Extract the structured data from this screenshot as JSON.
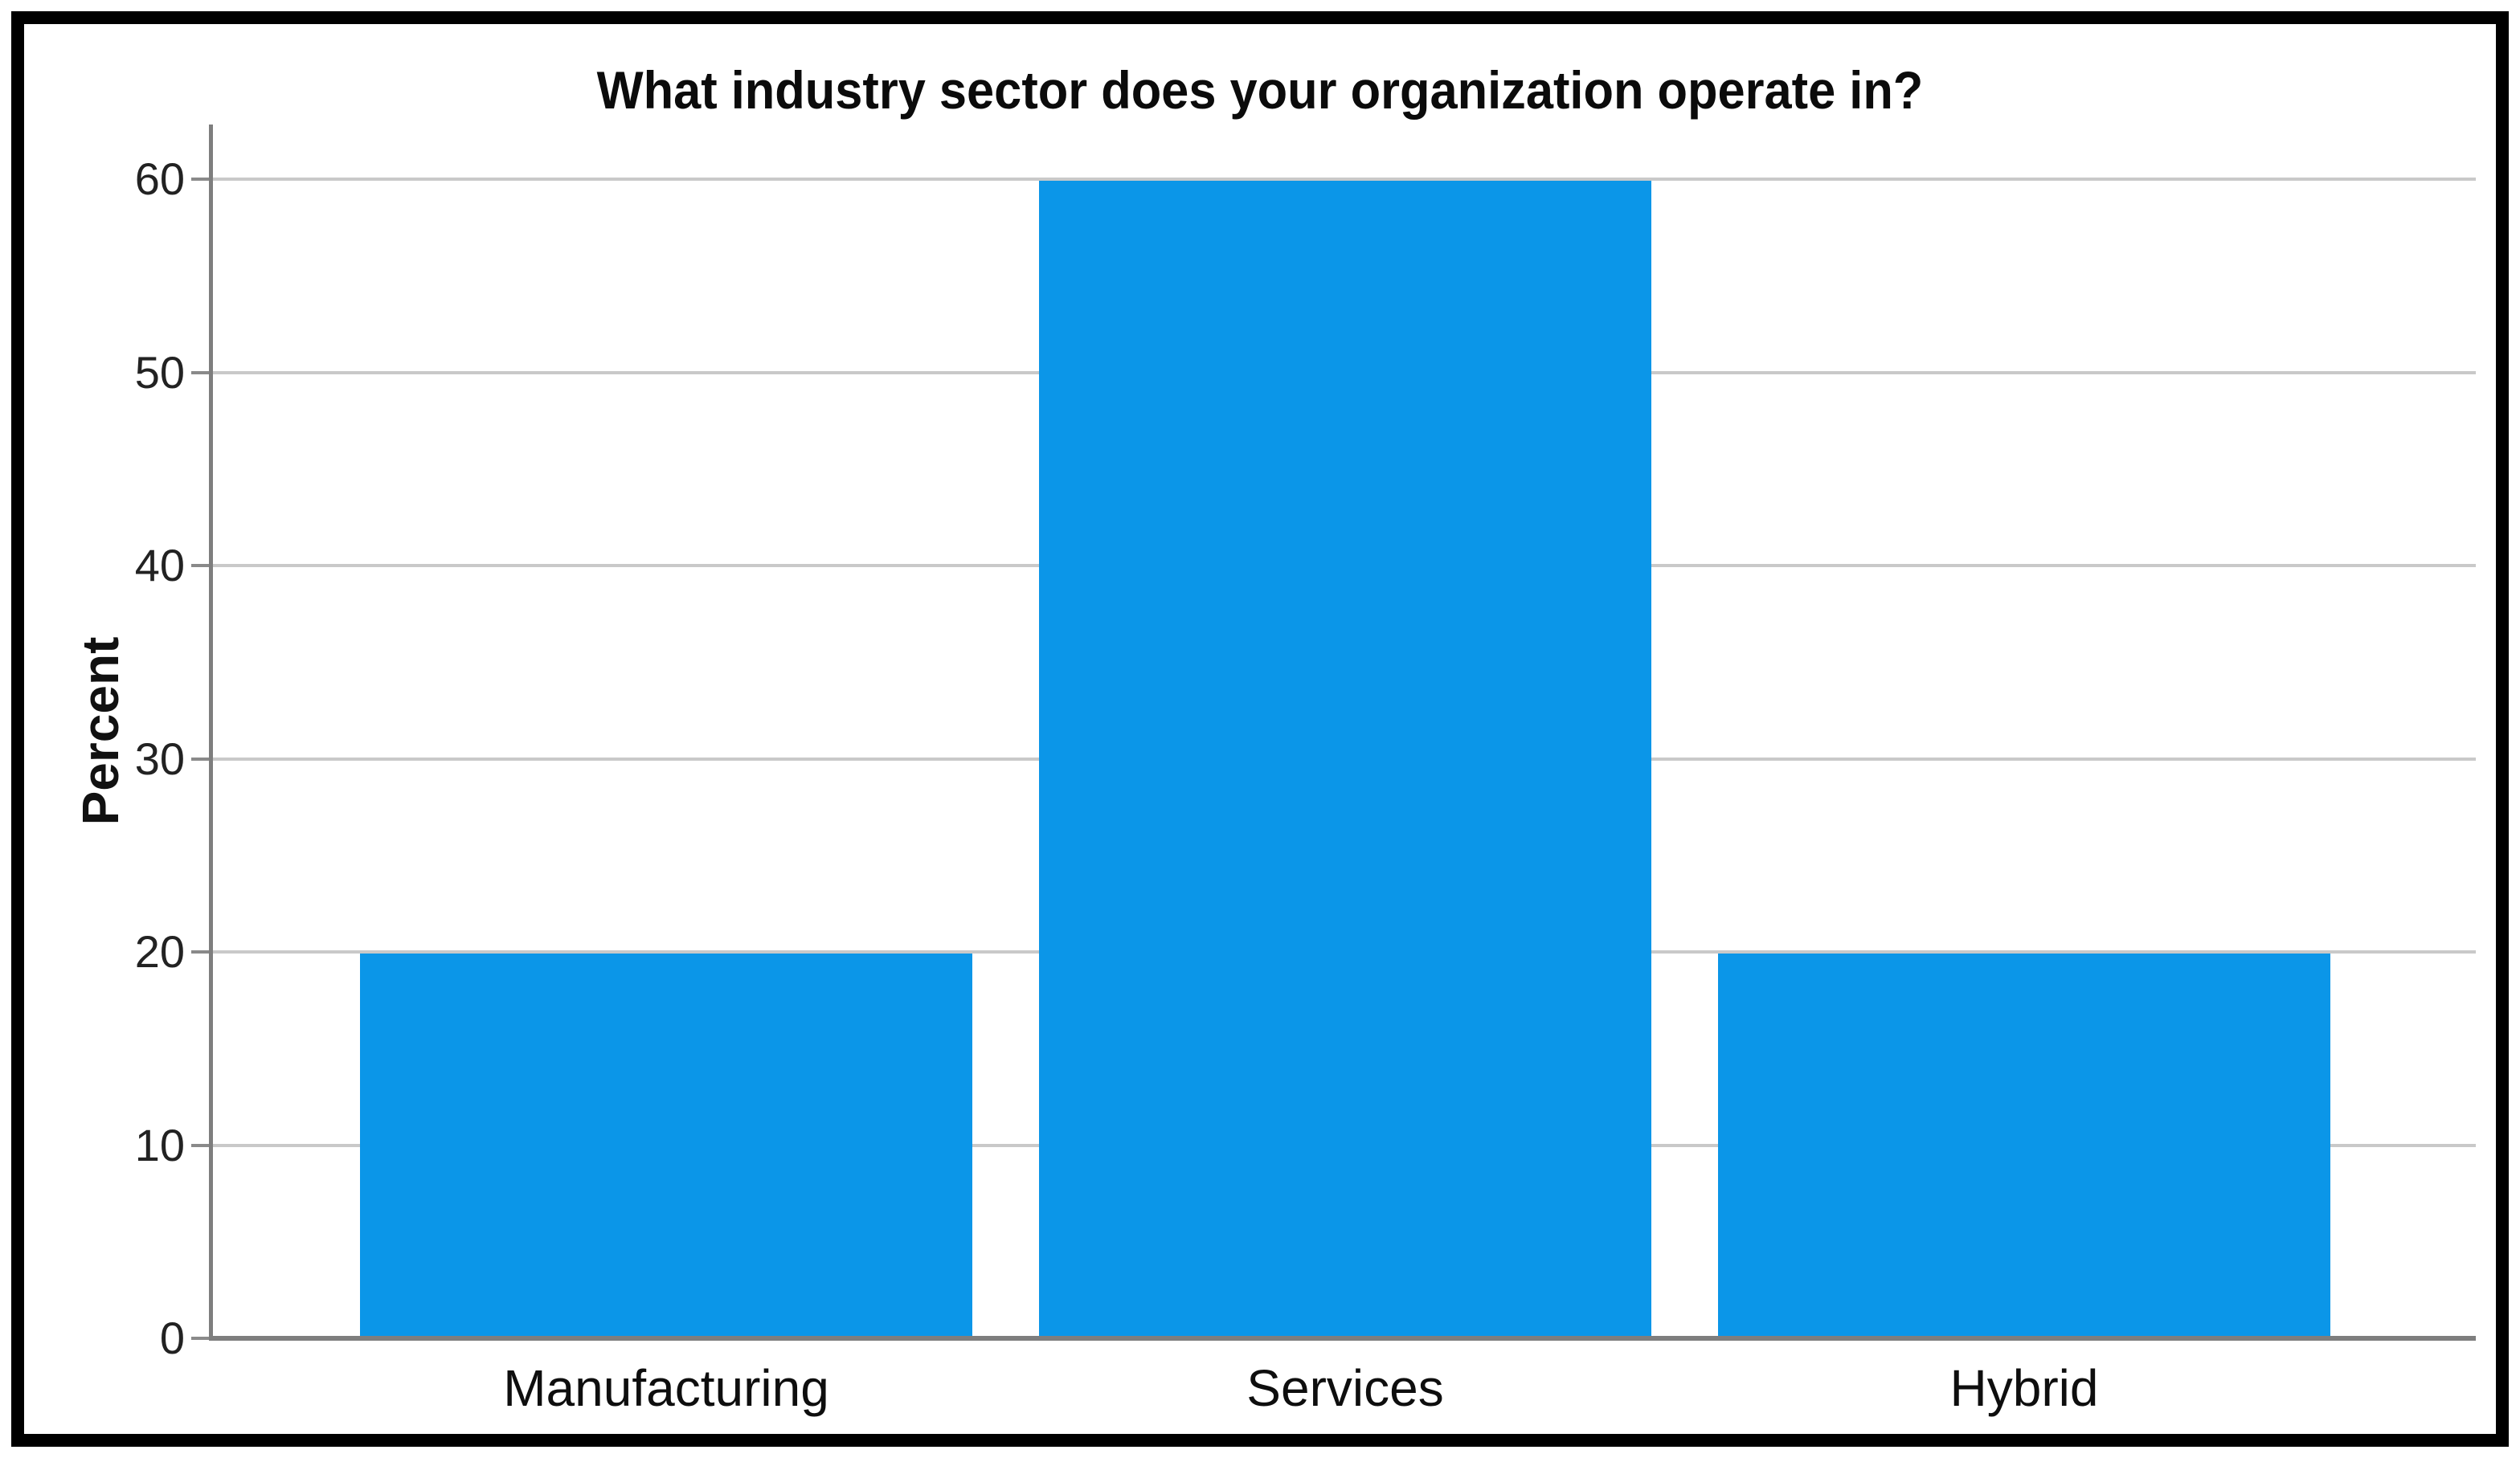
{
  "chart_data": {
    "type": "bar",
    "title": "What industry sector does your organization operate in?",
    "categories": [
      "Manufacturing",
      "Services",
      "Hybrid"
    ],
    "values": [
      20,
      60,
      20
    ],
    "series": [
      {
        "name": "Percent",
        "values": [
          20,
          60,
          20
        ]
      }
    ],
    "xlabel": "",
    "ylabel": "Percent",
    "ylim": [
      0,
      60
    ],
    "yticks": [
      0,
      10,
      20,
      30,
      40,
      50,
      60
    ],
    "grid": "horizontal-only",
    "legend_position": "none"
  },
  "colors": {
    "bar_fill": "#0b96e8",
    "gridline": "#c9c9c9",
    "axis_line": "#7e7e7e",
    "text": "#111111",
    "frame_border": "#000000",
    "background": "#ffffff"
  }
}
